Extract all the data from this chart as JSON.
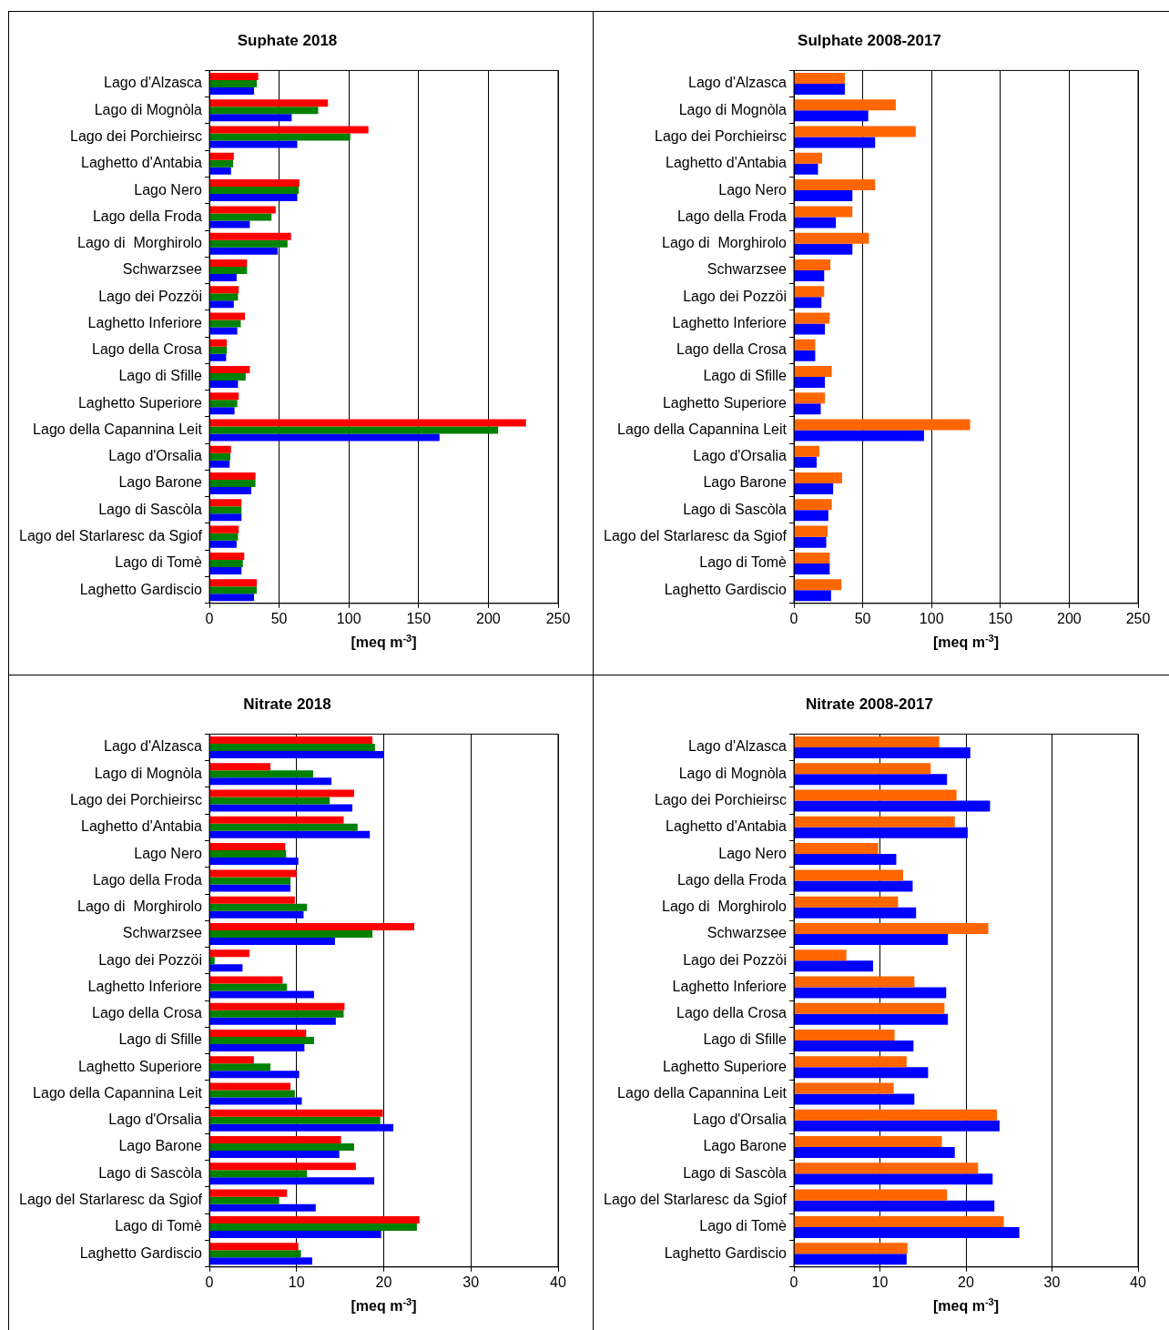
{
  "chart_data": [
    {
      "type": "bar",
      "orientation": "horizontal",
      "title": "Suphate 2018",
      "xlabel": "[meq m$^{-3}$]",
      "grid": "x",
      "xlim": [
        0,
        250
      ],
      "xticks": [
        0,
        50,
        100,
        150,
        200,
        250
      ],
      "categories": [
        "Lago d'Alzasca",
        "Lago di Mognòla",
        "Lago dei Porchieirsc",
        "Laghetto d'Antabia",
        "Lago Nero",
        "Lago della Froda",
        "Lago di  Morghirolo",
        "Schwarzsee",
        "Lago dei Pozzöi",
        "Laghetto Inferiore",
        "Lago della Crosa",
        "Lago di Sfille",
        "Laghetto Superiore",
        "Lago della Capannina Leit",
        "Lago d'Orsalia",
        "Lago Barone",
        "Lago di Sascòla",
        "Lago del Starlaresc da Sgiof",
        "Lago di Tomè",
        "Laghetto Gardiscio"
      ],
      "series": [
        {
          "color": "#ff0000",
          "values": [
            35,
            85,
            114,
            17.5,
            64.5,
            47.5,
            58.5,
            27,
            21,
            25.5,
            12.5,
            29,
            21,
            227,
            15.5,
            33,
            23,
            21,
            25,
            34
          ]
        },
        {
          "color": "#008000",
          "values": [
            34,
            78,
            101,
            17,
            64,
            44.5,
            56,
            27,
            20.5,
            22.5,
            12.5,
            26,
            20,
            207,
            15,
            33,
            23,
            20.5,
            24,
            34
          ]
        },
        {
          "color": "#0000ff",
          "values": [
            32,
            59,
            63,
            15.5,
            63,
            29,
            49,
            19.5,
            17.5,
            20,
            12,
            20.5,
            18,
            165,
            14.5,
            30,
            23,
            19.5,
            23,
            32
          ]
        }
      ]
    },
    {
      "type": "bar",
      "orientation": "horizontal",
      "title": "Sulphate 2008-2017",
      "xlabel": "[meq m$^{-3}$]",
      "grid": "x",
      "xlim": [
        0,
        250
      ],
      "xticks": [
        0,
        50,
        100,
        150,
        200,
        250
      ],
      "categories": [
        "Lago d'Alzasca",
        "Lago di Mognòla",
        "Lago dei Porchieirsc",
        "Laghetto d'Antabia",
        "Lago Nero",
        "Lago della Froda",
        "Lago di  Morghirolo",
        "Schwarzsee",
        "Lago dei Pozzöi",
        "Laghetto Inferiore",
        "Lago della Crosa",
        "Lago di Sfille",
        "Laghetto Superiore",
        "Lago della Capannina Leit",
        "Lago d'Orsalia",
        "Lago Barone",
        "Lago di Sascòla",
        "Lago del Starlaresc da Sgiof",
        "Lago di Tomè",
        "Laghetto Gardiscio"
      ],
      "series": [
        {
          "color": "#ff6600",
          "values": [
            37,
            74,
            88.5,
            20.5,
            59,
            42.5,
            54.5,
            26.5,
            22,
            26,
            15.5,
            27.5,
            22.5,
            128,
            18.5,
            35,
            27.5,
            24.5,
            26,
            34.5
          ]
        },
        {
          "color": "#0000ff",
          "values": [
            37,
            54,
            59,
            17.5,
            42.5,
            30.5,
            42.5,
            22,
            20,
            22.5,
            15.5,
            22.5,
            19.5,
            94.5,
            16.5,
            28.5,
            25,
            23.5,
            26,
            27
          ]
        }
      ]
    },
    {
      "type": "bar",
      "orientation": "horizontal",
      "title": "Nitrate 2018",
      "xlabel": "[meq m$^{-3}$]",
      "grid": "x",
      "xlim": [
        0,
        40
      ],
      "xticks": [
        0,
        10,
        20,
        30,
        40
      ],
      "categories": [
        "Lago d'Alzasca",
        "Lago di Mognòla",
        "Lago dei Porchieirsc",
        "Laghetto d'Antabia",
        "Lago Nero",
        "Lago della Froda",
        "Lago di  Morghirolo",
        "Schwarzsee",
        "Lago dei Pozzöi",
        "Laghetto Inferiore",
        "Lago della Crosa",
        "Lago di Sfille",
        "Laghetto Superiore",
        "Lago della Capannina Leit",
        "Lago d'Orsalia",
        "Lago Barone",
        "Lago di Sascòla",
        "Lago del Starlaresc da Sgiof",
        "Lago di Tomè",
        "Laghetto Gardiscio"
      ],
      "series": [
        {
          "color": "#ff0000",
          "values": [
            18.7,
            7.0,
            16.6,
            15.4,
            8.7,
            10.0,
            9.8,
            23.5,
            4.6,
            8.4,
            15.5,
            11.1,
            5.1,
            9.3,
            19.9,
            15.1,
            16.8,
            8.9,
            24.1,
            10.2
          ]
        },
        {
          "color": "#008000",
          "values": [
            19.0,
            11.9,
            13.8,
            17.0,
            8.8,
            9.3,
            11.2,
            18.7,
            0.6,
            8.9,
            15.4,
            12.0,
            7.0,
            9.8,
            19.6,
            16.6,
            11.2,
            8.0,
            23.8,
            10.5
          ]
        },
        {
          "color": "#0000ff",
          "values": [
            20.0,
            14.0,
            16.4,
            18.4,
            10.2,
            9.3,
            10.8,
            14.4,
            3.8,
            12.0,
            14.5,
            10.9,
            10.3,
            10.6,
            21.1,
            14.9,
            18.9,
            12.2,
            19.7,
            11.8
          ]
        }
      ]
    },
    {
      "type": "bar",
      "orientation": "horizontal",
      "title": "Nitrate 2008-2017",
      "xlabel": "[meq m$^{-3}$]",
      "grid": "x",
      "xlim": [
        0,
        40
      ],
      "xticks": [
        0,
        10,
        20,
        30,
        40
      ],
      "categories": [
        "Lago d'Alzasca",
        "Lago di Mognòla",
        "Lago dei Porchieirsc",
        "Laghetto d'Antabia",
        "Lago Nero",
        "Lago della Froda",
        "Lago di  Morghirolo",
        "Schwarzsee",
        "Lago dei Pozzöi",
        "Laghetto Inferiore",
        "Lago della Crosa",
        "Lago di Sfille",
        "Laghetto Superiore",
        "Lago della Capannina Leit",
        "Lago d'Orsalia",
        "Lago Barone",
        "Lago di Sascòla",
        "Lago del Starlaresc da Sgiof",
        "Lago di Tomè",
        "Laghetto Gardiscio"
      ],
      "series": [
        {
          "color": "#ff6600",
          "values": [
            16.9,
            15.9,
            18.9,
            18.7,
            9.8,
            12.7,
            12.1,
            22.6,
            6.1,
            14.0,
            17.5,
            11.7,
            13.1,
            11.6,
            23.6,
            17.2,
            21.4,
            17.8,
            24.4,
            13.2
          ]
        },
        {
          "color": "#0000ff",
          "values": [
            20.5,
            17.8,
            22.8,
            20.2,
            11.9,
            13.8,
            14.2,
            17.9,
            9.2,
            17.7,
            17.9,
            13.9,
            15.6,
            14.0,
            23.9,
            18.7,
            23.1,
            23.3,
            26.2,
            13.1
          ]
        }
      ]
    }
  ]
}
